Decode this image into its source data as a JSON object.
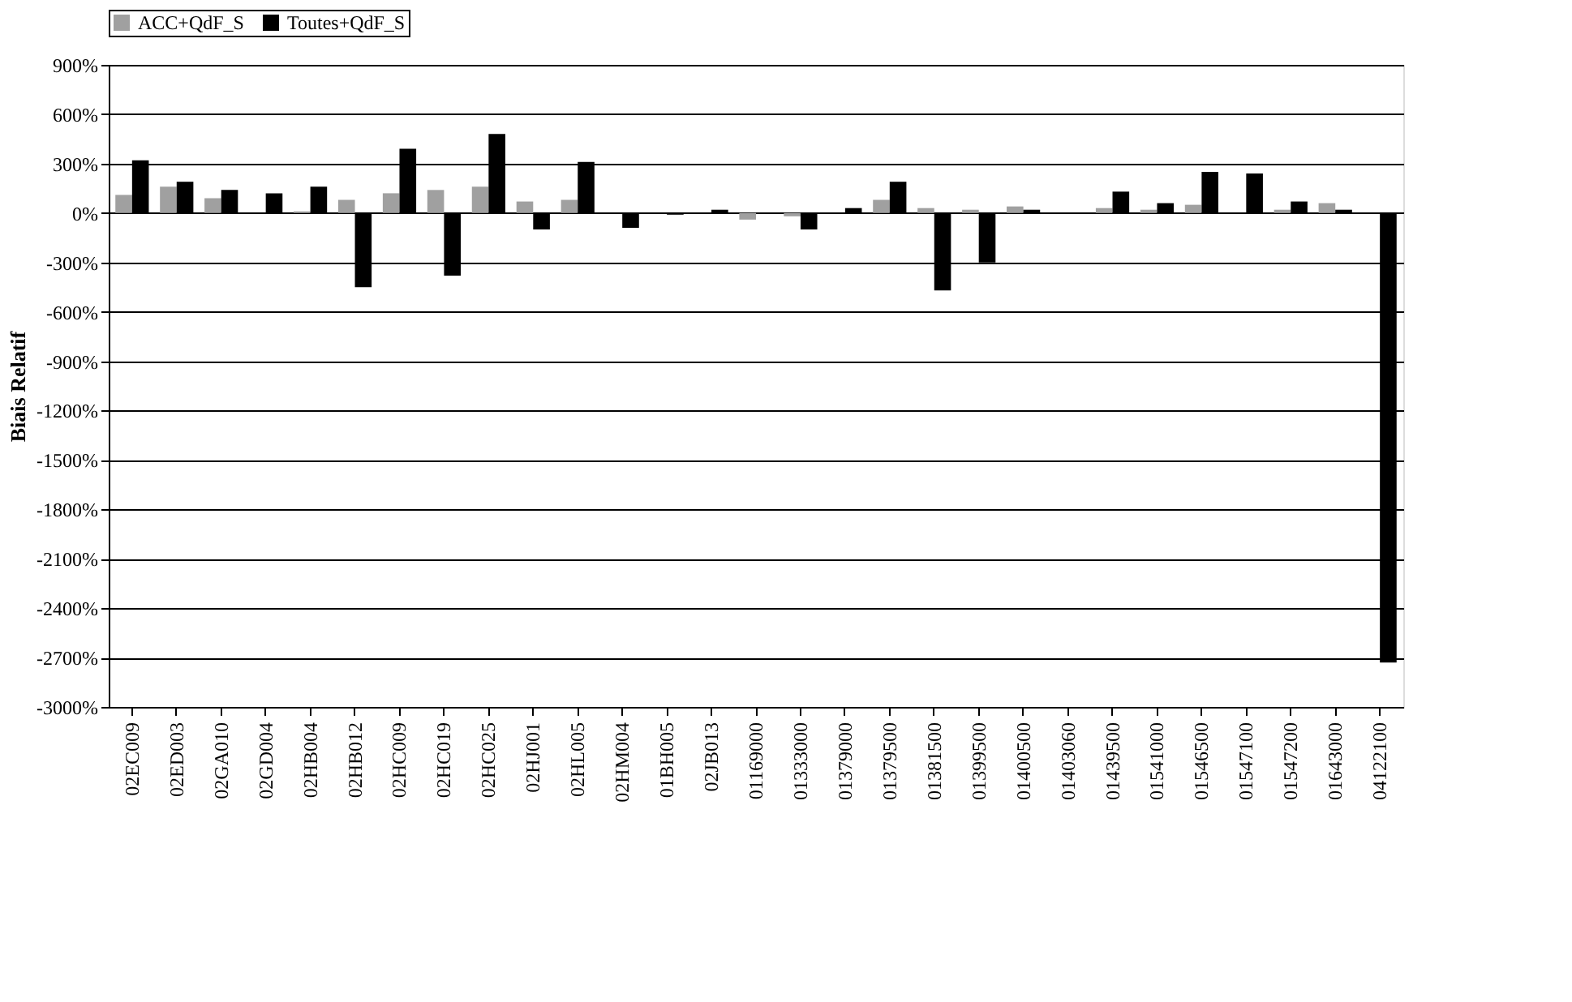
{
  "chart_data": {
    "type": "bar",
    "ylabel": "Biais Relatif",
    "categories": [
      "02EC009",
      "02ED003",
      "02GA010",
      "02GD004",
      "02HB004",
      "02HB012",
      "02HC009",
      "02HC019",
      "02HC025",
      "02HJ001",
      "02HL005",
      "02HM004",
      "01BH005",
      "02JB013",
      "01169000",
      "01333000",
      "01379000",
      "01379500",
      "01381500",
      "01399500",
      "01400500",
      "01403060",
      "01439500",
      "01541000",
      "01546500",
      "01547100",
      "01547200",
      "01643000",
      "04122100"
    ],
    "series": [
      {
        "name": "ACC+QdF_S",
        "color": "#a0a0a0",
        "values": [
          110,
          160,
          90,
          0,
          10,
          80,
          120,
          140,
          160,
          70,
          80,
          0,
          0,
          0,
          -40,
          -20,
          0,
          80,
          30,
          20,
          40,
          0,
          30,
          20,
          50,
          0,
          20,
          60,
          0
        ]
      },
      {
        "name": "Toutes+QdF_S",
        "color": "#000000",
        "values": [
          320,
          190,
          140,
          120,
          160,
          -450,
          390,
          -380,
          480,
          -100,
          310,
          -90,
          -10,
          20,
          0,
          -100,
          30,
          190,
          -470,
          -300,
          20,
          0,
          130,
          60,
          250,
          240,
          70,
          20,
          -2730
        ]
      }
    ],
    "ylim": [
      -3000,
      900
    ],
    "yticks": [
      {
        "value": 900,
        "label": "900%"
      },
      {
        "value": 600,
        "label": "600%"
      },
      {
        "value": 300,
        "label": "300%"
      },
      {
        "value": 0,
        "label": "0%"
      },
      {
        "value": -300,
        "label": "-300%"
      },
      {
        "value": -600,
        "label": "-600%"
      },
      {
        "value": -900,
        "label": "-900%"
      },
      {
        "value": -1200,
        "label": "-1200%"
      },
      {
        "value": -1500,
        "label": "-1500%"
      },
      {
        "value": -1800,
        "label": "-1800%"
      },
      {
        "value": -2100,
        "label": "-2100%"
      },
      {
        "value": -2400,
        "label": "-2400%"
      },
      {
        "value": -2700,
        "label": "-2700%"
      },
      {
        "value": -3000,
        "label": "-3000%"
      }
    ],
    "grid": "y",
    "legend": "top"
  }
}
